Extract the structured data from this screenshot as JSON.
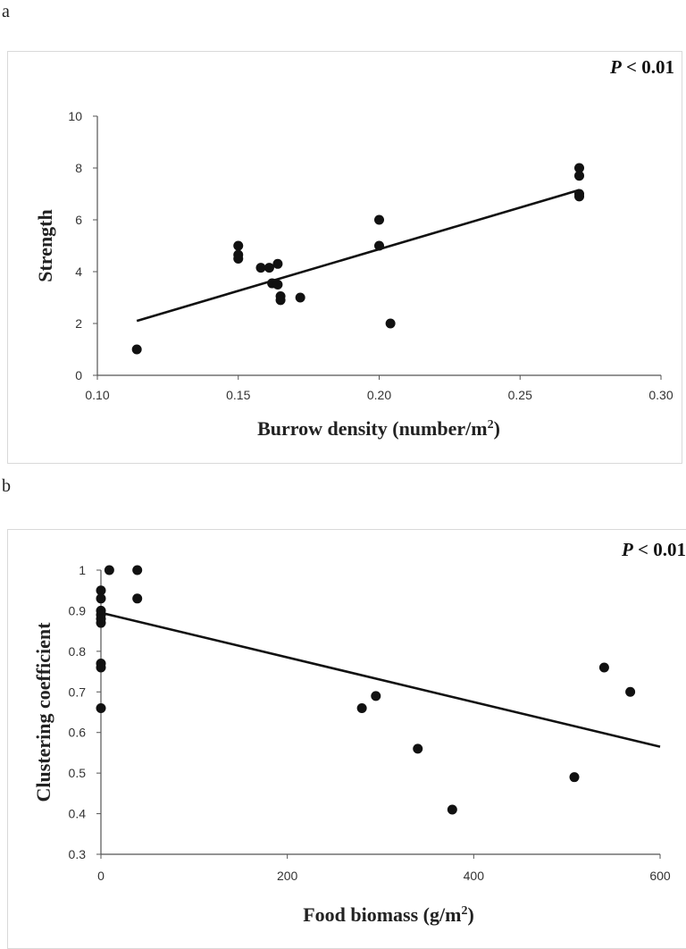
{
  "panels": {
    "a": {
      "label": "a"
    },
    "b": {
      "label": "b"
    }
  },
  "chart_data": [
    {
      "type": "scatter",
      "panel": "a",
      "xlabel_prefix": "Burrow density (number/m",
      "xlabel_sup": "2",
      "xlabel_suffix": ")",
      "ylabel": "Strength",
      "annotation_p": "P",
      "annotation_rest": " < 0.01",
      "xlim": [
        0.1,
        0.3
      ],
      "ylim": [
        0,
        10
      ],
      "xticks": [
        "0.10",
        "0.15",
        "0.20",
        "0.25",
        "0.30"
      ],
      "yticks": [
        "0",
        "2",
        "4",
        "6",
        "8",
        "10"
      ],
      "xtick_values": [
        0.1,
        0.15,
        0.2,
        0.25,
        0.3
      ],
      "ytick_values": [
        0,
        2,
        4,
        6,
        8,
        10
      ],
      "points": [
        [
          0.114,
          1.0
        ],
        [
          0.15,
          5.0
        ],
        [
          0.15,
          4.65
        ],
        [
          0.15,
          4.5
        ],
        [
          0.158,
          4.15
        ],
        [
          0.161,
          4.15
        ],
        [
          0.162,
          3.55
        ],
        [
          0.164,
          4.3
        ],
        [
          0.164,
          3.5
        ],
        [
          0.165,
          3.05
        ],
        [
          0.165,
          2.9
        ],
        [
          0.172,
          3.0
        ],
        [
          0.2,
          6.0
        ],
        [
          0.2,
          5.0
        ],
        [
          0.204,
          2.0
        ],
        [
          0.271,
          8.0
        ],
        [
          0.271,
          7.7
        ],
        [
          0.271,
          7.0
        ],
        [
          0.271,
          6.9
        ]
      ],
      "trendline": {
        "x": [
          0.114,
          0.271
        ],
        "y": [
          2.1,
          7.15
        ]
      },
      "grid": false,
      "legend": "none"
    },
    {
      "type": "scatter",
      "panel": "b",
      "xlabel_prefix": "Food biomass (g/m",
      "xlabel_sup": "2",
      "xlabel_suffix": ")",
      "ylabel": "Clustering coefficient",
      "annotation_p": "P",
      "annotation_rest": " < 0.01",
      "xlim": [
        0,
        600
      ],
      "ylim": [
        0.3,
        1.0
      ],
      "xticks": [
        "0",
        "200",
        "400",
        "600"
      ],
      "yticks": [
        "0.3",
        "0.4",
        "0.5",
        "0.6",
        "0.7",
        "0.8",
        "0.9",
        "1"
      ],
      "xtick_values": [
        0,
        200,
        400,
        600
      ],
      "ytick_values": [
        0.3,
        0.4,
        0.5,
        0.6,
        0.7,
        0.8,
        0.9,
        1.0
      ],
      "points": [
        [
          0,
          0.95
        ],
        [
          0,
          0.93
        ],
        [
          0,
          0.9
        ],
        [
          0,
          0.89
        ],
        [
          0,
          0.88
        ],
        [
          0,
          0.87
        ],
        [
          0,
          0.77
        ],
        [
          0,
          0.76
        ],
        [
          0,
          0.66
        ],
        [
          9,
          1.0
        ],
        [
          39,
          1.0
        ],
        [
          39,
          0.93
        ],
        [
          280,
          0.66
        ],
        [
          295,
          0.69
        ],
        [
          340,
          0.56
        ],
        [
          377,
          0.41
        ],
        [
          508,
          0.49
        ],
        [
          540,
          0.76
        ],
        [
          568,
          0.7
        ]
      ],
      "trendline": {
        "x": [
          0,
          600
        ],
        "y": [
          0.895,
          0.565
        ]
      },
      "grid": false,
      "legend": "none"
    }
  ]
}
